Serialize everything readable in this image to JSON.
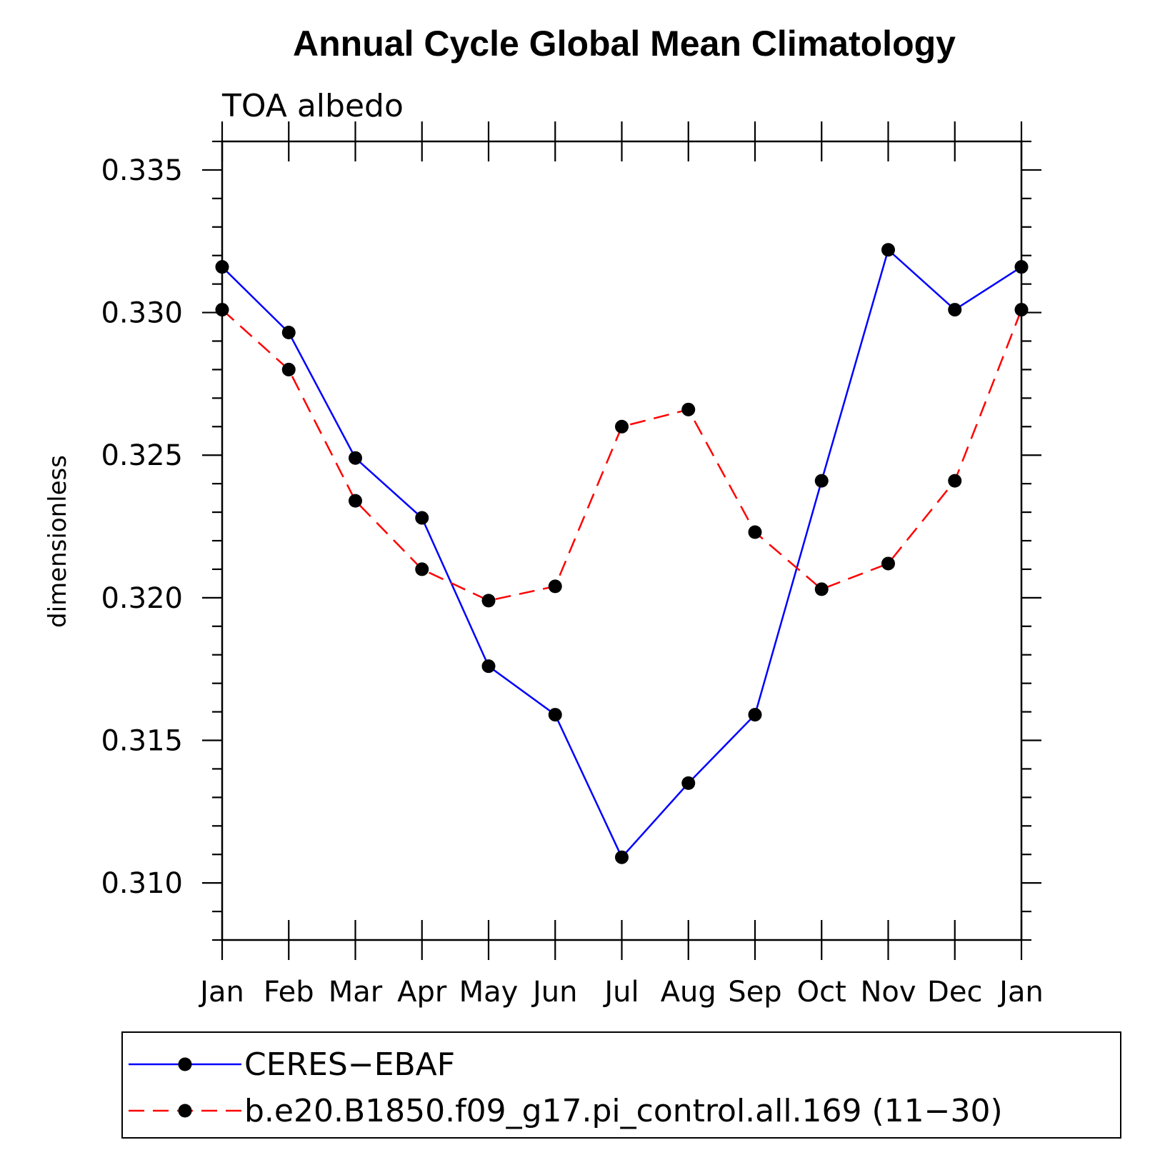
{
  "chart_data": {
    "type": "line",
    "title": "Annual Cycle Global Mean Climatology",
    "subtitle": "TOA albedo",
    "ylabel": "dimensionless",
    "xlabel": "",
    "categories": [
      "Jan",
      "Feb",
      "Mar",
      "Apr",
      "May",
      "Jun",
      "Jul",
      "Aug",
      "Sep",
      "Oct",
      "Nov",
      "Dec",
      "Jan"
    ],
    "ylim": [
      0.308,
      0.336
    ],
    "yticks": [
      "0.310",
      "0.315",
      "0.320",
      "0.325",
      "0.330",
      "0.335"
    ],
    "series": [
      {
        "name": "CERES−EBAF",
        "color": "#0000ff",
        "line_style": "solid",
        "marker": "filled-circle",
        "values": [
          0.3316,
          0.3293,
          0.3249,
          0.3228,
          0.3176,
          0.3159,
          0.3109,
          0.3135,
          0.3159,
          0.3241,
          0.3322,
          0.3301,
          0.3316
        ]
      },
      {
        "name": "b.e20.B1850.f09_g17.pi_control.all.169 (11−30)",
        "color": "#ff0000",
        "line_style": "dashed",
        "marker": "filled-circle",
        "values": [
          0.3301,
          0.328,
          0.3234,
          0.321,
          0.3199,
          0.3204,
          0.326,
          0.3266,
          0.3223,
          0.3203,
          0.3212,
          0.3241,
          0.3301
        ]
      }
    ],
    "grid": false,
    "legend_position": "bottom"
  }
}
